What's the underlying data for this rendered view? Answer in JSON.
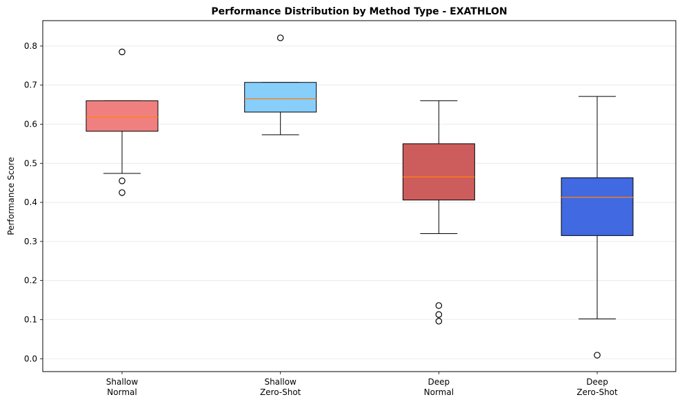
{
  "chart_data": {
    "type": "box",
    "title": "Performance Distribution by Method Type - EXATHLON",
    "xlabel": "",
    "ylabel": "Performance Score",
    "ylim": [
      -0.033,
      0.865
    ],
    "yticks": [
      "0.0",
      "0.1",
      "0.2",
      "0.3",
      "0.4",
      "0.5",
      "0.6",
      "0.7",
      "0.8"
    ],
    "grid": "y",
    "median_color": "#ff7f0e",
    "categories": [
      {
        "label_lines": [
          "Shallow",
          "Normal"
        ],
        "color": "#f08080",
        "whisker_low": 0.474,
        "q1": 0.582,
        "median": 0.618,
        "q3": 0.66,
        "whisker_high": 0.66,
        "outliers": [
          0.785,
          0.455,
          0.425
        ]
      },
      {
        "label_lines": [
          "Shallow",
          "Zero-Shot"
        ],
        "color": "#87cefa",
        "whisker_low": 0.573,
        "q1": 0.631,
        "median": 0.665,
        "q3": 0.707,
        "whisker_high": 0.707,
        "outliers": [
          0.821
        ]
      },
      {
        "label_lines": [
          "Deep",
          "Normal"
        ],
        "color": "#cd5c5c",
        "whisker_low": 0.32,
        "q1": 0.406,
        "median": 0.465,
        "q3": 0.55,
        "whisker_high": 0.66,
        "outliers": [
          0.136,
          0.113,
          0.096
        ]
      },
      {
        "label_lines": [
          "Deep",
          "Zero-Shot"
        ],
        "color": "#4169e1",
        "whisker_low": 0.102,
        "q1": 0.315,
        "median": 0.413,
        "q3": 0.463,
        "whisker_high": 0.671,
        "outliers": [
          0.009
        ]
      }
    ]
  }
}
